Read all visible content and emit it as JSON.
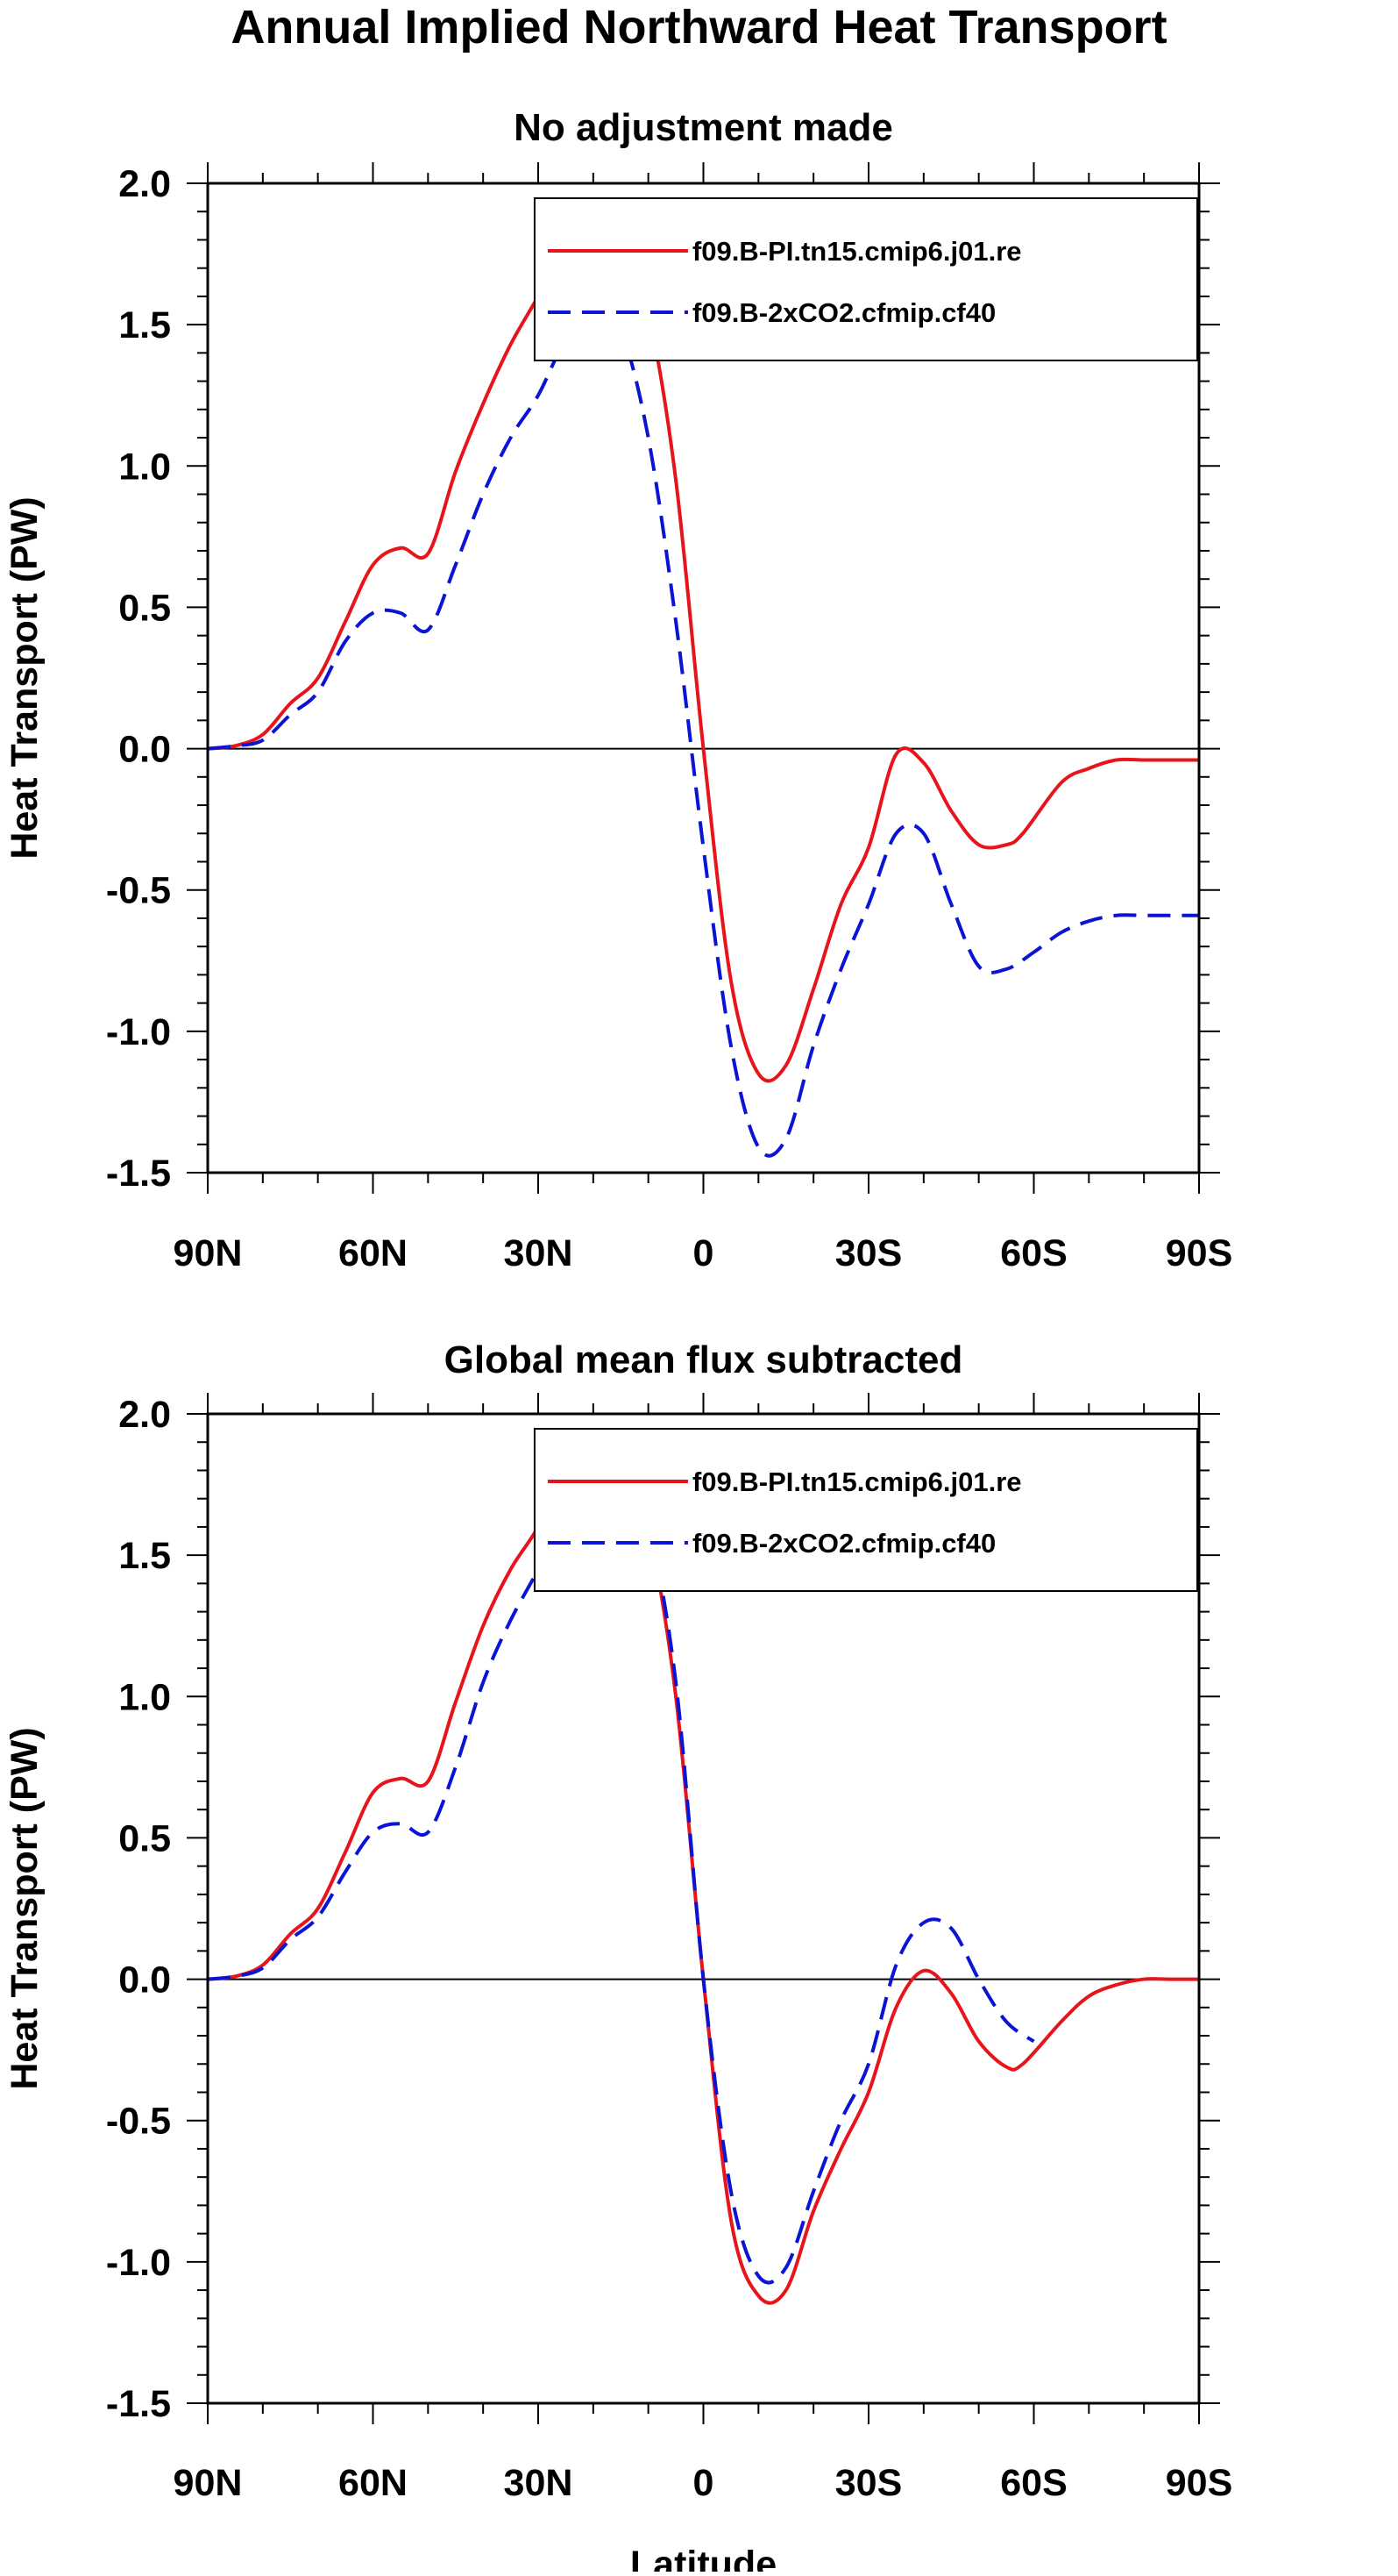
{
  "figure_title": "Annual Implied Northward Heat Transport",
  "chart_data": [
    {
      "type": "line",
      "title": "No adjustment made",
      "xlabel": "",
      "ylabel": "Heat Transport (PW)",
      "xlim": [
        90,
        -90
      ],
      "ylim": [
        -1.5,
        2.0
      ],
      "xticks": [
        90,
        60,
        30,
        0,
        -30,
        -60,
        -90
      ],
      "xtick_labels": [
        "90N",
        "60N",
        "30N",
        "0",
        "30S",
        "60S",
        "90S"
      ],
      "yticks": [
        2.0,
        1.5,
        1.0,
        0.5,
        0.0,
        -0.5,
        -1.0,
        -1.5
      ],
      "ytick_labels": [
        "2.0",
        "1.5",
        "1.0",
        "0.5",
        "0.0",
        "-0.5",
        "-1.0",
        "-1.5"
      ],
      "zero_line": true,
      "legend_position": "top-right",
      "series": [
        {
          "name": "f09.B-PI.tn15.cmip6.j01.re",
          "color": "#e8141c",
          "style": "solid",
          "x": [
            90,
            85,
            80,
            75,
            70,
            65,
            60,
            55,
            50,
            45,
            40,
            35,
            30,
            25,
            20,
            15,
            10,
            5,
            0,
            -5,
            -10,
            -15,
            -20,
            -25,
            -30,
            -35,
            -40,
            -45,
            -50,
            -55,
            -58,
            -65,
            -70,
            -75,
            -80,
            -85,
            -90
          ],
          "y": [
            0.0,
            0.01,
            0.05,
            0.16,
            0.25,
            0.45,
            0.65,
            0.71,
            0.69,
            0.98,
            1.22,
            1.43,
            1.6,
            1.78,
            1.9,
            1.87,
            1.55,
            0.95,
            0.0,
            -0.82,
            -1.15,
            -1.12,
            -0.85,
            -0.55,
            -0.35,
            -0.02,
            -0.05,
            -0.22,
            -0.34,
            -0.34,
            -0.3,
            -0.12,
            -0.07,
            -0.04,
            -0.04,
            -0.04,
            -0.04
          ]
        },
        {
          "name": "f09.B-2xCO2.cfmip.cf40",
          "color": "#0a14d4",
          "style": "dashed",
          "x": [
            90,
            85,
            80,
            75,
            70,
            65,
            60,
            55,
            50,
            45,
            40,
            35,
            30,
            25,
            20,
            15,
            10,
            5,
            0,
            -5,
            -10,
            -15,
            -20,
            -25,
            -30,
            -35,
            -40,
            -45,
            -50,
            -55,
            -60,
            -65,
            -70,
            -75,
            -80,
            -85,
            -90
          ],
          "y": [
            0.0,
            0.01,
            0.03,
            0.12,
            0.2,
            0.38,
            0.48,
            0.48,
            0.42,
            0.65,
            0.9,
            1.1,
            1.25,
            1.45,
            1.57,
            1.48,
            1.1,
            0.45,
            -0.35,
            -1.05,
            -1.41,
            -1.38,
            -1.05,
            -0.78,
            -0.55,
            -0.3,
            -0.3,
            -0.55,
            -0.77,
            -0.78,
            -0.72,
            -0.65,
            -0.61,
            -0.59,
            -0.59,
            -0.59,
            -0.59
          ]
        }
      ]
    },
    {
      "type": "line",
      "title": "Global mean flux subtracted",
      "xlabel": "Latitude",
      "ylabel": "Heat Transport (PW)",
      "xlim": [
        90,
        -90
      ],
      "ylim": [
        -1.5,
        2.0
      ],
      "xticks": [
        90,
        60,
        30,
        0,
        -30,
        -60,
        -90
      ],
      "xtick_labels": [
        "90N",
        "60N",
        "30N",
        "0",
        "30S",
        "60S",
        "90S"
      ],
      "yticks": [
        2.0,
        1.5,
        1.0,
        0.5,
        0.0,
        -0.5,
        -1.0,
        -1.5
      ],
      "ytick_labels": [
        "2.0",
        "1.5",
        "1.0",
        "0.5",
        "0.0",
        "-0.5",
        "-1.0",
        "-1.5"
      ],
      "zero_line": true,
      "legend_position": "top-right",
      "series": [
        {
          "name": "f09.B-PI.tn15.cmip6.j01.re",
          "color": "#e8141c",
          "style": "solid",
          "x": [
            90,
            85,
            80,
            75,
            70,
            65,
            60,
            55,
            50,
            45,
            40,
            35,
            30,
            25,
            20,
            15,
            10,
            5,
            0,
            -5,
            -10,
            -15,
            -20,
            -25,
            -30,
            -35,
            -40,
            -45,
            -50,
            -55,
            -58,
            -65,
            -70,
            -75,
            -80,
            -85,
            -90
          ],
          "y": [
            0.0,
            0.01,
            0.05,
            0.16,
            0.25,
            0.45,
            0.66,
            0.71,
            0.7,
            0.98,
            1.25,
            1.45,
            1.6,
            1.8,
            1.92,
            1.9,
            1.6,
            1.0,
            0.0,
            -0.85,
            -1.12,
            -1.1,
            -0.82,
            -0.6,
            -0.4,
            -0.1,
            0.03,
            -0.05,
            -0.22,
            -0.31,
            -0.3,
            -0.15,
            -0.06,
            -0.02,
            0.0,
            0.0,
            0.0
          ]
        },
        {
          "name": "f09.B-2xCO2.cfmip.cf40",
          "color": "#0a14d4",
          "style": "dashed",
          "x": [
            90,
            85,
            80,
            75,
            70,
            65,
            60,
            55,
            50,
            45,
            40,
            35,
            30,
            25,
            20,
            15,
            10,
            5,
            0,
            -5,
            -10,
            -15,
            -20,
            -25,
            -30,
            -35,
            -40,
            -45,
            -50,
            -55,
            -60
          ],
          "y": [
            0.0,
            0.01,
            0.04,
            0.14,
            0.22,
            0.38,
            0.52,
            0.55,
            0.52,
            0.75,
            1.05,
            1.27,
            1.45,
            1.65,
            1.78,
            1.8,
            1.6,
            1.05,
            0.0,
            -0.75,
            -1.05,
            -1.02,
            -0.75,
            -0.5,
            -0.3,
            0.05,
            0.2,
            0.18,
            0.0,
            -0.15,
            -0.22
          ]
        }
      ]
    }
  ]
}
